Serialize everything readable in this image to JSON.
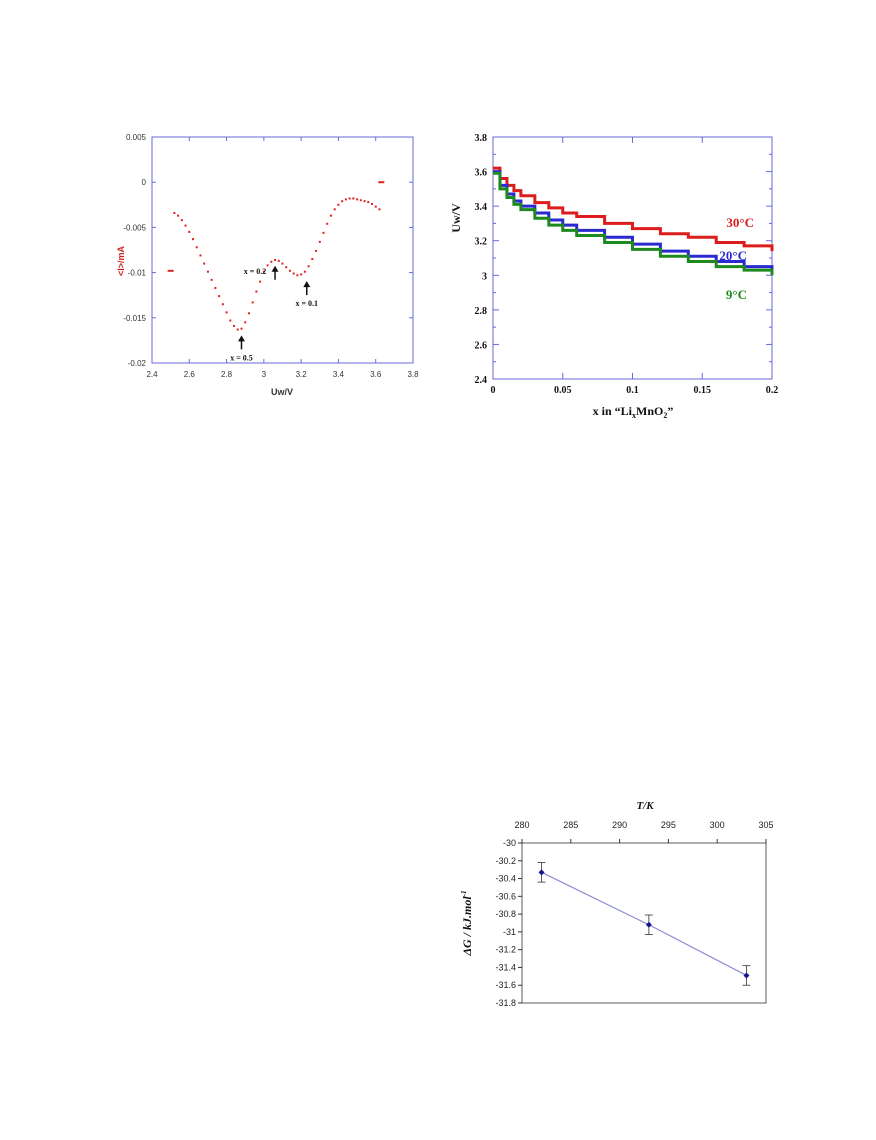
{
  "chart_data": [
    {
      "type": "scatter",
      "title": "",
      "xlabel": "Uw/V",
      "ylabel": "<I>/mA",
      "xlim": [
        2.4,
        3.8
      ],
      "ylim": [
        -0.02,
        0.005
      ],
      "xticks": [
        "2.4",
        "2.6",
        "2.8",
        "3",
        "3.2",
        "3.4",
        "3.6",
        "3.8"
      ],
      "yticks": [
        "0.005",
        "0",
        "-0.005",
        "-0.01",
        "-0.015",
        "-0.02"
      ],
      "grid": false,
      "colors": {
        "series": "#dd2222",
        "axis": "#6a6adb",
        "label": "#cc2020"
      },
      "series": [
        {
          "x": [
            2.5,
            2.52,
            2.54,
            2.56,
            2.58,
            2.6,
            2.62,
            2.64,
            2.66,
            2.68,
            2.7,
            2.72,
            2.74,
            2.76,
            2.78,
            2.8,
            2.82,
            2.84,
            2.86,
            2.88,
            2.9,
            2.92,
            2.94,
            2.96,
            2.98,
            3.0,
            3.02,
            3.04,
            3.06,
            3.08,
            3.1,
            3.12,
            3.14,
            3.16,
            3.18,
            3.2,
            3.22,
            3.24,
            3.26,
            3.28,
            3.3,
            3.32,
            3.34,
            3.36,
            3.38,
            3.4,
            3.42,
            3.44,
            3.46,
            3.48,
            3.5,
            3.52,
            3.54,
            3.56,
            3.58,
            3.6,
            3.62,
            3.63
          ],
          "y": [
            -0.0098,
            -0.0034,
            -0.0037,
            -0.0042,
            -0.0048,
            -0.0055,
            -0.0063,
            -0.0072,
            -0.0081,
            -0.009,
            -0.0099,
            -0.0108,
            -0.0117,
            -0.0126,
            -0.0135,
            -0.0144,
            -0.0153,
            -0.0159,
            -0.0163,
            -0.0162,
            -0.0155,
            -0.0145,
            -0.0133,
            -0.0121,
            -0.011,
            -0.0099,
            -0.0092,
            -0.0088,
            -0.0086,
            -0.0087,
            -0.009,
            -0.0094,
            -0.0098,
            -0.0101,
            -0.0103,
            -0.0102,
            -0.0099,
            -0.0093,
            -0.0085,
            -0.0076,
            -0.0066,
            -0.0056,
            -0.0046,
            -0.0037,
            -0.003,
            -0.0025,
            -0.0021,
            -0.0019,
            -0.0018,
            -0.0018,
            -0.0019,
            -0.002,
            -0.0021,
            -0.0022,
            -0.0024,
            -0.0027,
            -0.003,
            0.0
          ]
        }
      ],
      "annotations": [
        {
          "text": "x = 0.5",
          "x": 2.88,
          "y": -0.0165
        },
        {
          "text": "x = 0.2",
          "x": 3.06,
          "y": -0.0088
        },
        {
          "text": "x = 0.1",
          "x": 3.23,
          "y": -0.0105
        }
      ]
    },
    {
      "type": "line",
      "title": "",
      "xlabel": "x in “Li",
      "xlabel_sub1": "x",
      "xlabel_mid": "MnO",
      "xlabel_sub2": "2",
      "xlabel_end": "”",
      "ylabel": "Uw/V",
      "xlim": [
        0,
        0.2
      ],
      "ylim": [
        2.4,
        3.8
      ],
      "xticks": [
        "0",
        "0.05",
        "0.1",
        "0.15",
        "0.2"
      ],
      "yticks": [
        "3.8",
        "3.6",
        "3.4",
        "3.2",
        "3",
        "2.8",
        "2.6",
        "2.4"
      ],
      "grid": false,
      "colors": {
        "axis": "#6a6adb"
      },
      "series": [
        {
          "name": "30°C",
          "color": "#dd1c1c",
          "x": [
            0,
            0.005,
            0.01,
            0.015,
            0.02,
            0.03,
            0.04,
            0.05,
            0.06,
            0.08,
            0.1,
            0.12,
            0.14,
            0.16,
            0.18,
            0.2
          ],
          "y": [
            3.62,
            3.56,
            3.52,
            3.49,
            3.46,
            3.42,
            3.39,
            3.36,
            3.34,
            3.3,
            3.27,
            3.24,
            3.22,
            3.19,
            3.17,
            3.14
          ]
        },
        {
          "name": "20°C",
          "color": "#2a2ad0",
          "x": [
            0,
            0.005,
            0.01,
            0.015,
            0.02,
            0.03,
            0.04,
            0.05,
            0.06,
            0.08,
            0.1,
            0.12,
            0.14,
            0.16,
            0.18,
            0.2
          ],
          "y": [
            3.6,
            3.52,
            3.47,
            3.43,
            3.4,
            3.36,
            3.32,
            3.29,
            3.26,
            3.22,
            3.18,
            3.14,
            3.11,
            3.08,
            3.05,
            3.02
          ]
        },
        {
          "name": "9°C",
          "color": "#1e8a1e",
          "x": [
            0,
            0.005,
            0.01,
            0.015,
            0.02,
            0.03,
            0.04,
            0.05,
            0.06,
            0.08,
            0.1,
            0.12,
            0.14,
            0.16,
            0.18,
            0.2
          ],
          "y": [
            3.59,
            3.5,
            3.45,
            3.41,
            3.38,
            3.33,
            3.29,
            3.26,
            3.23,
            3.19,
            3.15,
            3.11,
            3.08,
            3.05,
            3.03,
            3.0
          ]
        }
      ]
    },
    {
      "type": "line",
      "title": "",
      "xlabel": "T/K",
      "ylabel": "ΔG / kJ.mol",
      "ylabel_sup": "-1",
      "xlim": [
        280,
        305
      ],
      "ylim": [
        -31.8,
        -30
      ],
      "xaxis_position": "top",
      "xticks": [
        "280",
        "285",
        "290",
        "295",
        "300",
        "305"
      ],
      "yticks": [
        "-30",
        "-30.2",
        "-30.4",
        "-30.6",
        "-30.8",
        "-31",
        "-31.2",
        "-31.4",
        "-31.6",
        "-31.8"
      ],
      "grid": false,
      "colors": {
        "line": "#8c8cd2",
        "marker": "#16168c",
        "errorbar": "#333333"
      },
      "series": [
        {
          "x": [
            282,
            293,
            303
          ],
          "y": [
            -30.33,
            -30.92,
            -31.49
          ],
          "error": [
            0.11,
            0.11,
            0.11
          ]
        }
      ]
    }
  ]
}
